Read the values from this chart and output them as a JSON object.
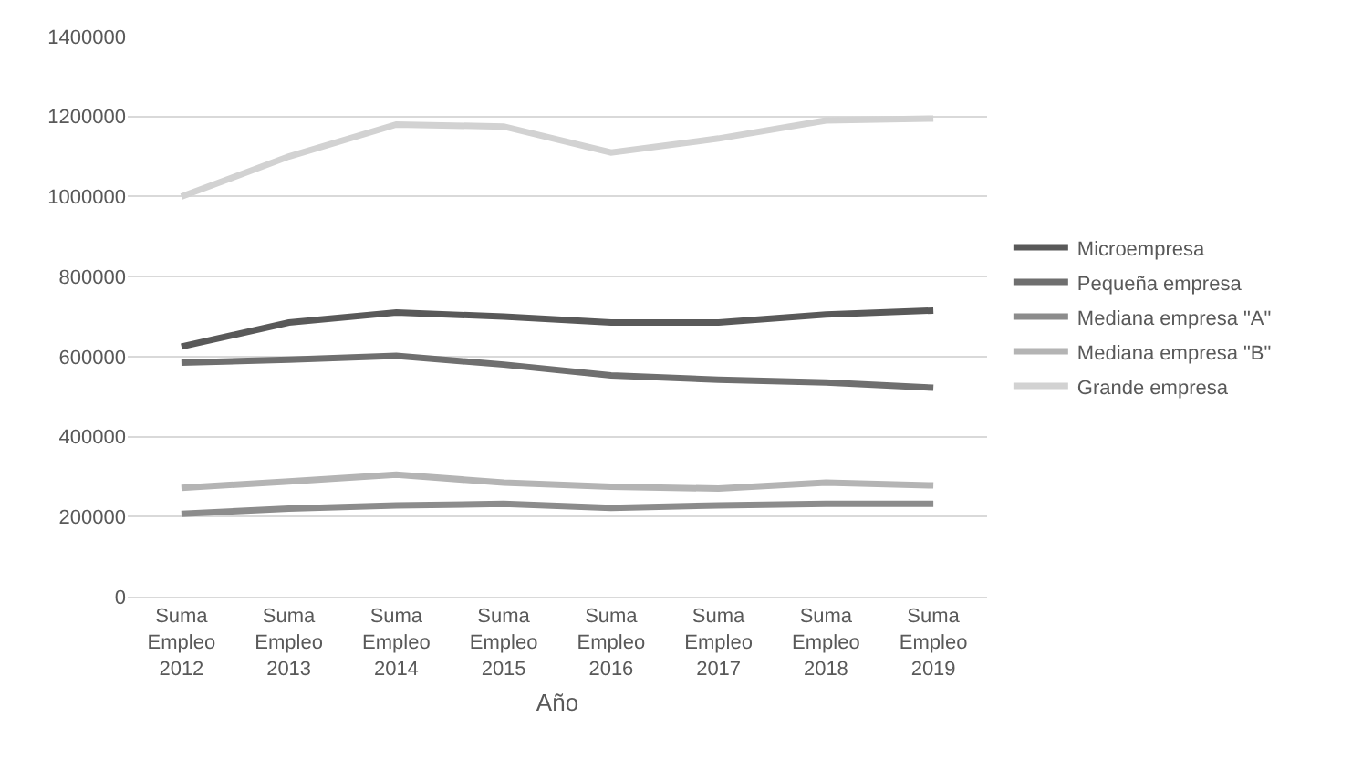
{
  "chart_data": {
    "type": "line",
    "xlabel": "Año",
    "categories": [
      "Suma Empleo 2012",
      "Suma Empleo 2013",
      "Suma Empleo 2014",
      "Suma Empleo 2015",
      "Suma Empleo 2016",
      "Suma Empleo 2017",
      "Suma Empleo 2018",
      "Suma Empleo 2019"
    ],
    "series": [
      {
        "name": "Microempresa",
        "color": "#595959",
        "values": [
          625000,
          685000,
          710000,
          700000,
          685000,
          685000,
          705000,
          715000
        ]
      },
      {
        "name": "Pequeña empresa",
        "color": "#6f6f6f",
        "values": [
          585000,
          592000,
          602000,
          580000,
          553000,
          542000,
          535000,
          522000
        ]
      },
      {
        "name": "Mediana empresa \"A\"",
        "color": "#8c8c8c",
        "values": [
          207000,
          220000,
          228000,
          232000,
          222000,
          228000,
          232000,
          232000
        ]
      },
      {
        "name": "Mediana empresa \"B\"",
        "color": "#b4b4b4",
        "values": [
          272000,
          288000,
          305000,
          285000,
          275000,
          270000,
          285000,
          278000
        ]
      },
      {
        "name": "Grande empresa",
        "color": "#d2d2d2",
        "values": [
          1000000,
          1100000,
          1180000,
          1175000,
          1110000,
          1145000,
          1190000,
          1195000
        ]
      }
    ],
    "ylim": [
      0,
      1400000
    ],
    "yticks": [
      0,
      200000,
      400000,
      600000,
      800000,
      1000000,
      1200000,
      1400000
    ],
    "grid": "y",
    "legend": "right",
    "marker": "none",
    "line_style": "solid"
  }
}
